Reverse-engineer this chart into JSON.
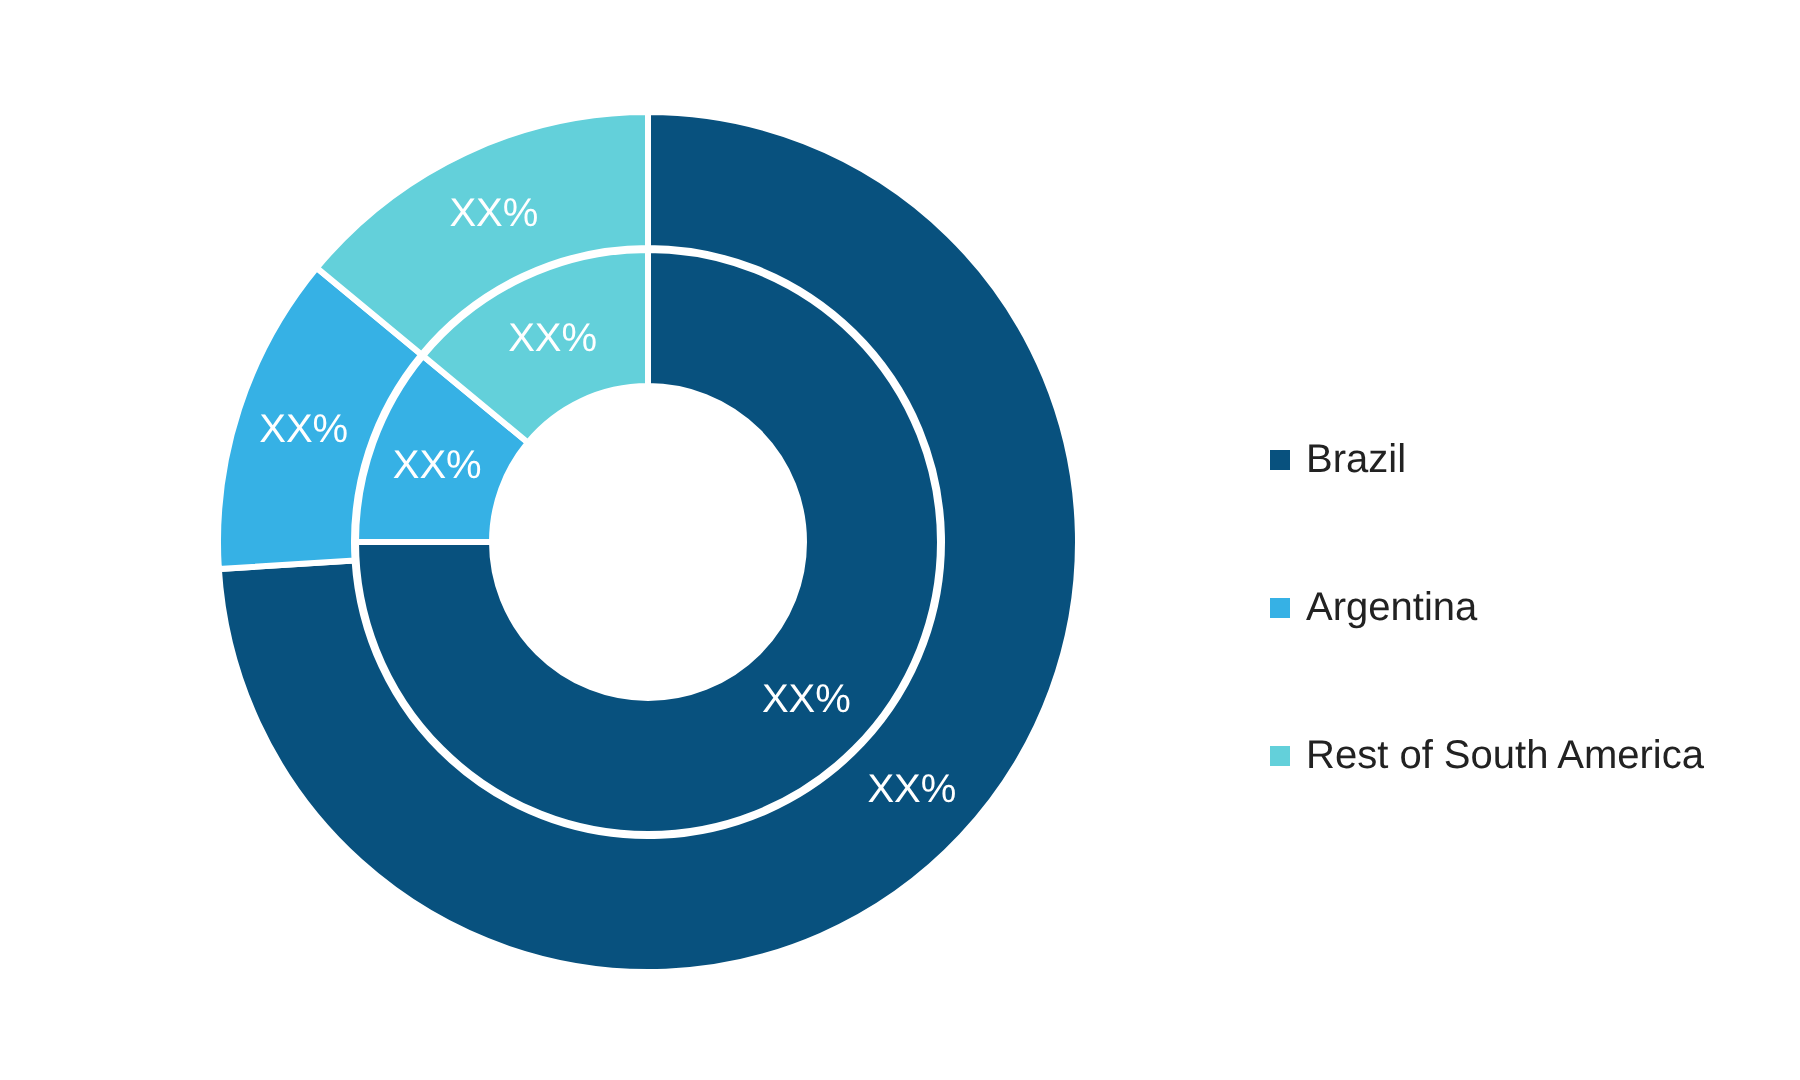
{
  "chart_data": {
    "type": "donut",
    "categories": [
      "Brazil",
      "Argentina",
      "Rest of South America"
    ],
    "colors": [
      "#08517e",
      "#36b1e5",
      "#63d0da"
    ],
    "series": [
      {
        "values": [
          75,
          11,
          14
        ],
        "value_labels": [
          "XX%",
          "XX%",
          "XX%"
        ]
      },
      {
        "values": [
          74,
          12,
          14
        ],
        "value_labels": [
          "XX%",
          "XX%",
          "XX%"
        ]
      }
    ],
    "legend": "right"
  }
}
